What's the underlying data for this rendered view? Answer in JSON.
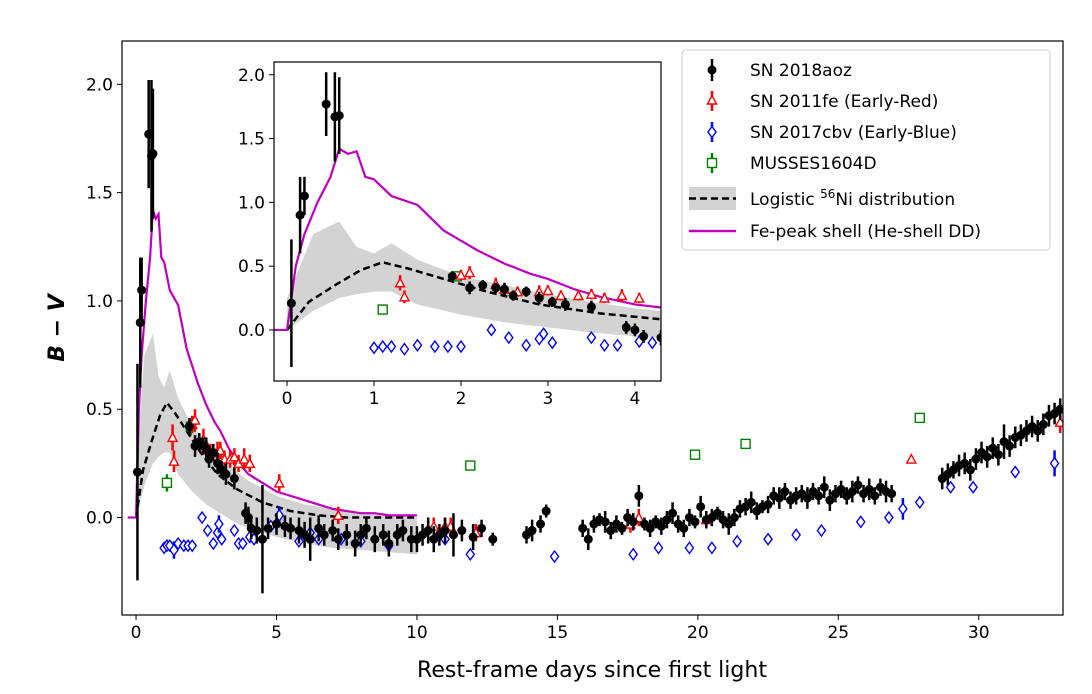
{
  "chart_data": [
    {
      "panel": "main",
      "type": "scatter",
      "xlabel": "Rest-frame days since first light",
      "ylabel": "B − V",
      "xlim": [
        -0.5,
        33.0
      ],
      "ylim": [
        -0.45,
        2.2
      ],
      "xticks": [
        0,
        5,
        10,
        15,
        20,
        25,
        30
      ],
      "yticks": [
        0.0,
        0.5,
        1.0,
        1.5,
        2.0
      ],
      "xtick_labels": [
        "0",
        "5",
        "10",
        "15",
        "20",
        "25",
        "30"
      ],
      "ytick_labels": [
        "0.0",
        "0.5",
        "1.0",
        "1.5",
        "2.0"
      ],
      "legend": {
        "location": "top-right",
        "entries": [
          {
            "label": "SN 2018aoz",
            "marker": "circle",
            "color": "#000000"
          },
          {
            "label": "SN 2011fe (Early-Red)",
            "marker": "triangle",
            "color": "#ff0000"
          },
          {
            "label": "SN 2017cbv (Early-Blue)",
            "marker": "diamond",
            "color": "#0000ff"
          },
          {
            "label": "MUSSES1604D",
            "marker": "square",
            "color": "#008000"
          },
          {
            "label_prefix": "Logistic ",
            "label_sup": "56",
            "label_suffix": "Ni distribution",
            "marker": "dashed-line-band",
            "color": "#000000"
          },
          {
            "label": "Fe-peak shell (He-shell DD)",
            "marker": "line",
            "color": "#bf00bf"
          }
        ]
      },
      "series": [
        {
          "name": "SN 2018aoz",
          "marker": "circle",
          "color": "#000000",
          "x": [
            0.05,
            0.15,
            0.2,
            0.45,
            0.55,
            0.6,
            1.9,
            2.1,
            2.25,
            2.4,
            2.5,
            2.6,
            2.75,
            2.9,
            3.05,
            3.2,
            3.5,
            3.9,
            4.0,
            4.1,
            4.3,
            4.5,
            4.7,
            5.0,
            5.3,
            5.5,
            5.8,
            6.0,
            6.2,
            6.5,
            6.7,
            7.0,
            7.2,
            7.5,
            7.8,
            8.0,
            8.2,
            8.5,
            8.8,
            9.0,
            9.3,
            9.5,
            9.8,
            10.0,
            10.2,
            10.4,
            10.6,
            10.8,
            11.0,
            11.3,
            11.6,
            12.0,
            12.3,
            12.7,
            13.9,
            14.1,
            14.4,
            14.6,
            15.9,
            16.1,
            16.3,
            16.5,
            16.7,
            16.9,
            17.1,
            17.3,
            17.5,
            17.7,
            17.9,
            18.1,
            18.3,
            18.5,
            18.7,
            18.9,
            19.1,
            19.3,
            19.5,
            19.7,
            19.9,
            20.1,
            20.3,
            20.5,
            20.7,
            20.9,
            21.1,
            21.3,
            21.5,
            21.7,
            21.9,
            22.1,
            22.3,
            22.5,
            22.7,
            22.9,
            23.1,
            23.3,
            23.5,
            23.7,
            23.9,
            24.1,
            24.3,
            24.5,
            24.7,
            24.9,
            25.1,
            25.3,
            25.5,
            25.7,
            25.9,
            26.1,
            26.3,
            26.5,
            26.7,
            26.9,
            28.7,
            28.9,
            29.1,
            29.3,
            29.5,
            29.7,
            29.9,
            30.1,
            30.3,
            30.5,
            30.7,
            30.9,
            31.1,
            31.3,
            31.5,
            31.7,
            31.9,
            32.1,
            32.3,
            32.5,
            32.7,
            32.9
          ],
          "y": [
            0.21,
            0.9,
            1.05,
            1.77,
            1.67,
            1.68,
            0.42,
            0.33,
            0.35,
            0.33,
            0.32,
            0.27,
            0.3,
            0.25,
            0.22,
            0.2,
            0.18,
            0.02,
            0.0,
            -0.05,
            -0.06,
            -0.1,
            -0.05,
            -0.03,
            -0.04,
            -0.05,
            -0.06,
            -0.08,
            -0.1,
            -0.05,
            -0.08,
            -0.06,
            -0.1,
            -0.08,
            -0.12,
            -0.08,
            -0.05,
            -0.1,
            -0.08,
            -0.12,
            -0.08,
            -0.06,
            -0.1,
            -0.1,
            -0.08,
            -0.06,
            -0.1,
            -0.08,
            -0.06,
            -0.08,
            -0.06,
            -0.09,
            -0.05,
            -0.1,
            -0.08,
            -0.06,
            -0.03,
            0.03,
            -0.05,
            -0.1,
            -0.03,
            -0.01,
            -0.02,
            -0.06,
            -0.03,
            -0.05,
            0.0,
            -0.02,
            0.1,
            -0.03,
            -0.05,
            -0.02,
            -0.04,
            -0.01,
            0.02,
            -0.03,
            -0.05,
            0.0,
            -0.02,
            0.05,
            -0.01,
            0.0,
            0.02,
            -0.01,
            -0.03,
            0.0,
            0.04,
            0.05,
            0.07,
            0.03,
            0.05,
            0.06,
            0.1,
            0.09,
            0.12,
            0.08,
            0.1,
            0.11,
            0.09,
            0.12,
            0.1,
            0.14,
            0.08,
            0.11,
            0.13,
            0.1,
            0.12,
            0.15,
            0.11,
            0.13,
            0.1,
            0.14,
            0.12,
            0.11,
            0.18,
            0.2,
            0.22,
            0.24,
            0.25,
            0.22,
            0.27,
            0.3,
            0.28,
            0.32,
            0.29,
            0.35,
            0.33,
            0.37,
            0.38,
            0.4,
            0.42,
            0.4,
            0.43,
            0.47,
            0.48,
            0.5
          ],
          "err": [
            0.5,
            0.3,
            0.15,
            0.25,
            0.35,
            0.3,
            0.04,
            0.05,
            0.04,
            0.04,
            0.05,
            0.04,
            0.04,
            0.05,
            0.04,
            0.05,
            0.05,
            0.05,
            0.05,
            0.05,
            0.06,
            0.25,
            0.05,
            0.05,
            0.05,
            0.05,
            0.06,
            0.06,
            0.1,
            0.06,
            0.05,
            0.05,
            0.05,
            0.05,
            0.06,
            0.05,
            0.05,
            0.06,
            0.05,
            0.06,
            0.05,
            0.05,
            0.06,
            0.06,
            0.05,
            0.06,
            0.06,
            0.05,
            0.06,
            0.1,
            0.05,
            0.06,
            0.04,
            0.03,
            0.04,
            0.05,
            0.04,
            0.03,
            0.04,
            0.05,
            0.04,
            0.03,
            0.05,
            0.04,
            0.04,
            0.03,
            0.04,
            0.04,
            0.05,
            0.03,
            0.04,
            0.03,
            0.04,
            0.04,
            0.05,
            0.04,
            0.04,
            0.04,
            0.03,
            0.05,
            0.04,
            0.04,
            0.03,
            0.04,
            0.05,
            0.04,
            0.04,
            0.04,
            0.05,
            0.04,
            0.03,
            0.04,
            0.04,
            0.05,
            0.04,
            0.04,
            0.04,
            0.04,
            0.05,
            0.04,
            0.04,
            0.05,
            0.05,
            0.04,
            0.04,
            0.04,
            0.05,
            0.04,
            0.04,
            0.05,
            0.04,
            0.04,
            0.05,
            0.04,
            0.05,
            0.05,
            0.04,
            0.05,
            0.05,
            0.05,
            0.05,
            0.05,
            0.05,
            0.05,
            0.05,
            0.08,
            0.05,
            0.05,
            0.05,
            0.05,
            0.05,
            0.05,
            0.05,
            0.05,
            0.05,
            0.05
          ]
        },
        {
          "name": "SN 2011fe (Early-Red)",
          "marker": "triangle",
          "color": "#ff0000",
          "x": [
            1.3,
            1.35,
            2.0,
            2.1,
            2.4,
            2.5,
            2.65,
            2.9,
            3.0,
            3.15,
            3.35,
            3.5,
            3.65,
            3.85,
            4.05,
            5.1,
            7.2,
            10.6,
            11.0,
            11.2,
            12.1,
            17.6,
            17.9,
            20.3,
            27.6,
            32.9
          ],
          "y": [
            0.37,
            0.26,
            0.43,
            0.45,
            0.36,
            0.32,
            0.3,
            0.3,
            0.31,
            0.27,
            0.27,
            0.28,
            0.25,
            0.27,
            0.25,
            0.16,
            0.01,
            -0.04,
            -0.04,
            -0.04,
            -0.07,
            -0.03,
            0.0,
            -0.01,
            0.27,
            0.44
          ],
          "err": [
            0.06,
            0.05,
            0.04,
            0.05,
            0.05,
            0.04,
            0.04,
            0.05,
            0.04,
            0.04,
            0.04,
            0.04,
            0.04,
            0.05,
            0.04,
            0.04,
            0.04,
            0.04,
            0.04,
            0.04,
            0.04,
            0.04,
            0.04,
            0.04,
            0.0,
            0.05
          ]
        },
        {
          "name": "SN 2017cbv (Early-Blue)",
          "marker": "diamond",
          "color": "#0000ff",
          "x": [
            1.0,
            1.1,
            1.2,
            1.35,
            1.5,
            1.7,
            1.85,
            2.0,
            2.35,
            2.55,
            2.75,
            2.9,
            2.95,
            3.05,
            3.5,
            3.65,
            3.8,
            4.05,
            4.2,
            4.8,
            5.1,
            5.8,
            6.2,
            6.5,
            7.3,
            8.0,
            9.0,
            11.0,
            11.9,
            14.9,
            17.7,
            18.6,
            19.7,
            20.5,
            21.4,
            22.5,
            23.5,
            24.4,
            25.8,
            26.8,
            27.3,
            27.9,
            29.0,
            29.8,
            31.3,
            32.7
          ],
          "y": [
            -0.14,
            -0.13,
            -0.13,
            -0.15,
            -0.12,
            -0.13,
            -0.13,
            -0.13,
            0.0,
            -0.06,
            -0.12,
            -0.07,
            -0.03,
            -0.1,
            -0.06,
            -0.12,
            -0.12,
            -0.09,
            -0.1,
            -0.04,
            0.01,
            -0.11,
            -0.07,
            -0.1,
            -0.1,
            -0.11,
            -0.13,
            -0.1,
            -0.17,
            -0.18,
            -0.17,
            -0.14,
            -0.14,
            -0.14,
            -0.11,
            -0.1,
            -0.08,
            -0.06,
            -0.02,
            0.0,
            0.04,
            0.07,
            0.14,
            0.14,
            0.21,
            0.25
          ],
          "err": [
            0.0,
            0.0,
            0.0,
            0.04,
            0.0,
            0.0,
            0.0,
            0.0,
            0.0,
            0.0,
            0.0,
            0.0,
            0.04,
            0.0,
            0.0,
            0.0,
            0.0,
            0.0,
            0.0,
            0.0,
            0.04,
            0.0,
            0.0,
            0.0,
            0.0,
            0.0,
            0.0,
            0.0,
            0.0,
            0.0,
            0.0,
            0.0,
            0.0,
            0.0,
            0.0,
            0.0,
            0.0,
            0.0,
            0.0,
            0.0,
            0.05,
            0.0,
            0.0,
            0.0,
            0.0,
            0.06
          ]
        },
        {
          "name": "MUSSES1604D",
          "marker": "square",
          "color": "#008000",
          "x": [
            1.1,
            1.95,
            11.9,
            19.9,
            21.7,
            27.9
          ],
          "y": [
            0.16,
            0.42,
            0.24,
            0.29,
            0.34,
            0.46
          ],
          "err": [
            0.04,
            0.04,
            0.0,
            0.0,
            0.0,
            0.0
          ]
        }
      ],
      "lines": [
        {
          "name": "Fe-peak shell (He-shell DD)",
          "color": "#bf00bf",
          "style": "solid",
          "x": [
            -0.3,
            0.0,
            0.1,
            0.2,
            0.35,
            0.5,
            0.6,
            0.7,
            0.8,
            0.9,
            1.0,
            1.2,
            1.5,
            1.8,
            2.0,
            2.2,
            2.5,
            2.8,
            3.0,
            3.3,
            3.6,
            4.0,
            4.5,
            5.0,
            5.5,
            6.0,
            6.5,
            7.0,
            7.5,
            8.0,
            8.5,
            9.0,
            9.5,
            10.0
          ],
          "y": [
            0.0,
            0.0,
            0.5,
            0.75,
            1.0,
            1.2,
            1.42,
            1.38,
            1.4,
            1.2,
            1.18,
            1.05,
            0.98,
            0.78,
            0.7,
            0.62,
            0.52,
            0.44,
            0.4,
            0.32,
            0.26,
            0.2,
            0.16,
            0.12,
            0.1,
            0.08,
            0.06,
            0.04,
            0.03,
            0.02,
            0.02,
            0.01,
            0.01,
            0.01
          ]
        },
        {
          "name": "Logistic 56Ni distribution",
          "color": "#000000",
          "style": "dashed",
          "x": [
            0.0,
            0.25,
            0.55,
            0.85,
            1.1,
            1.4,
            1.8,
            2.3,
            2.9,
            3.6,
            4.5,
            5.5,
            6.5,
            7.5,
            8.5,
            9.5,
            10.0
          ],
          "y": [
            0.0,
            0.22,
            0.35,
            0.47,
            0.53,
            0.48,
            0.4,
            0.3,
            0.2,
            0.13,
            0.07,
            0.03,
            0.01,
            0.0,
            0.0,
            0.0,
            0.0
          ]
        }
      ],
      "band": {
        "name": "Logistic 56Ni distribution range",
        "color": "#d3d3d3",
        "x": [
          0.0,
          0.3,
          0.6,
          0.8,
          1.0,
          1.2,
          1.5,
          2.0,
          2.5,
          3.0,
          3.5,
          4.0,
          5.0,
          6.0,
          7.0,
          8.0,
          9.0,
          10.0
        ],
        "upper": [
          0.25,
          0.75,
          0.85,
          0.65,
          0.6,
          0.68,
          0.55,
          0.42,
          0.35,
          0.28,
          0.22,
          0.17,
          0.1,
          0.06,
          0.04,
          0.02,
          0.01,
          0.0
        ],
        "lower": [
          0.0,
          0.15,
          0.25,
          0.28,
          0.3,
          0.3,
          0.2,
          0.12,
          0.06,
          0.02,
          -0.02,
          -0.05,
          -0.09,
          -0.12,
          -0.14,
          -0.15,
          -0.16,
          -0.17
        ]
      }
    },
    {
      "panel": "inset",
      "type": "scatter",
      "note": "zoom of the main panel, same series",
      "xlim": [
        -0.15,
        4.3
      ],
      "ylim": [
        -0.4,
        2.1
      ],
      "xticks": [
        0,
        1,
        2,
        3,
        4
      ],
      "yticks": [
        0.0,
        0.5,
        1.0,
        1.5,
        2.0
      ],
      "xtick_labels": [
        "0",
        "1",
        "2",
        "3",
        "4"
      ],
      "ytick_labels": [
        "0.0",
        "0.5",
        "1.0",
        "1.5",
        "2.0"
      ]
    }
  ]
}
